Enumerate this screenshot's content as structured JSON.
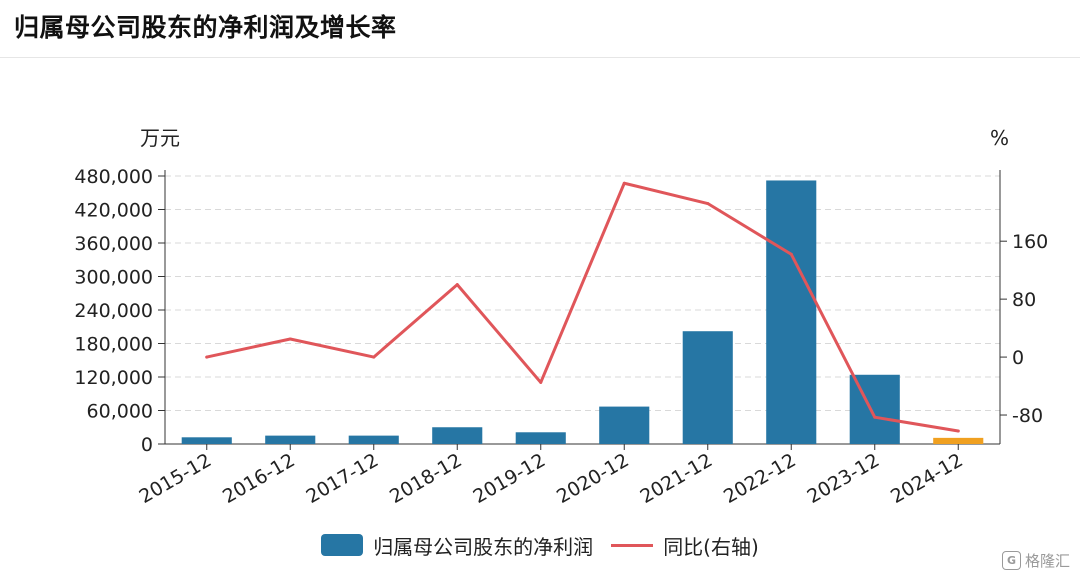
{
  "title": "归属母公司股东的净利润及增长率",
  "watermark": {
    "icon": "G",
    "text": "格隆汇"
  },
  "legend": {
    "bar_label": "归属母公司股东的净利润",
    "line_label": "同比(右轴)"
  },
  "colors": {
    "bar": "#2676a4",
    "bar_highlight": "#f0a020",
    "line": "#e0565a",
    "grid": "#d9d9d9",
    "axis": "#333333"
  },
  "chart_data": {
    "type": "bar+line",
    "categories": [
      "2015-12",
      "2016-12",
      "2017-12",
      "2018-12",
      "2019-12",
      "2020-12",
      "2021-12",
      "2022-12",
      "2023-12",
      "2024-12"
    ],
    "series": [
      {
        "name": "归属母公司股东的净利润",
        "type": "bar",
        "axis": "left",
        "values": [
          12000,
          15000,
          15000,
          30000,
          21000,
          67000,
          202000,
          472000,
          124000,
          11000
        ]
      },
      {
        "name": "同比(右轴)",
        "type": "line",
        "axis": "right",
        "values": [
          0,
          25,
          0,
          100,
          -35,
          240,
          212,
          142,
          -83,
          -102
        ]
      }
    ],
    "left_axis": {
      "unit": "万元",
      "min": 0,
      "max": 480000,
      "ticks": [
        0,
        60000,
        120000,
        180000,
        240000,
        300000,
        360000,
        420000,
        480000
      ],
      "tick_labels": [
        "0",
        "60,000",
        "120,000",
        "180,000",
        "240,000",
        "300,000",
        "360,000",
        "420,000",
        "480,000"
      ]
    },
    "right_axis": {
      "unit": "%",
      "min": -120,
      "max": 250,
      "ticks": [
        -80,
        0,
        80,
        160
      ],
      "tick_labels": [
        "-80",
        "0",
        "80",
        "160"
      ]
    },
    "highlight_last_bar": true,
    "grid": true,
    "legend_position": "bottom"
  }
}
